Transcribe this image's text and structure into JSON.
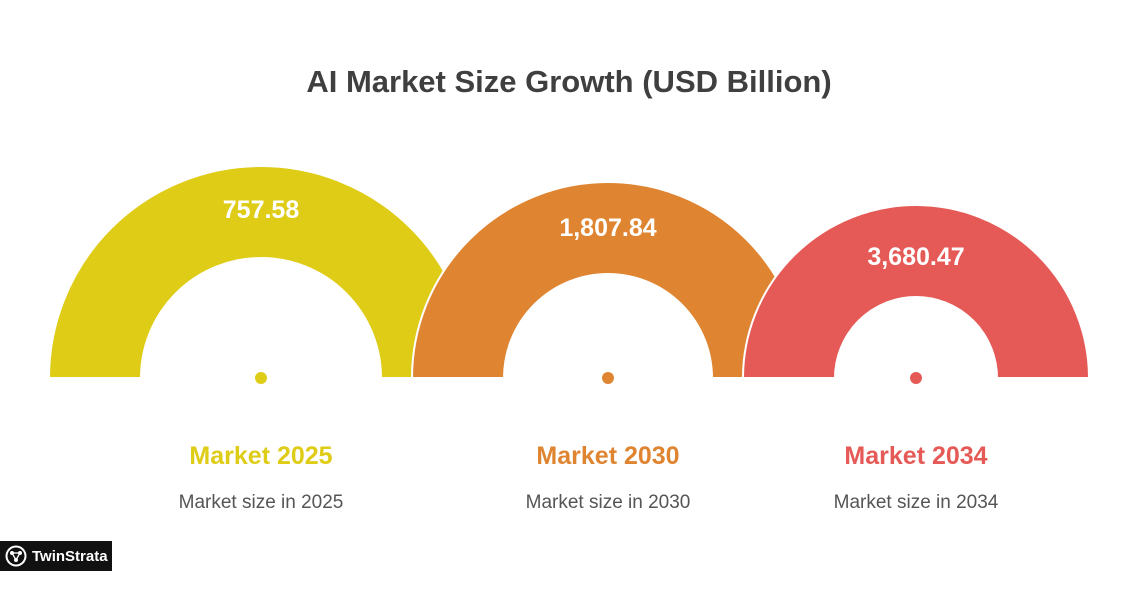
{
  "chart_data": {
    "type": "gauge",
    "title": "AI Market Size Growth (USD Billion)",
    "categories": [
      "Market 2025",
      "Market 2030",
      "Market 2034"
    ],
    "values": [
      757.58,
      1807.84,
      3680.47
    ],
    "value_labels": [
      "757.58",
      "1,807.84",
      "3,680.47"
    ],
    "descriptions": [
      "Market size in 2025",
      "Market size in 2030",
      "Market size in 2034"
    ],
    "colors": [
      "#dfcc16",
      "#df8431",
      "#e55a56"
    ]
  },
  "brand": {
    "name": "TwinStrata",
    "icon": "brain-network-icon"
  }
}
